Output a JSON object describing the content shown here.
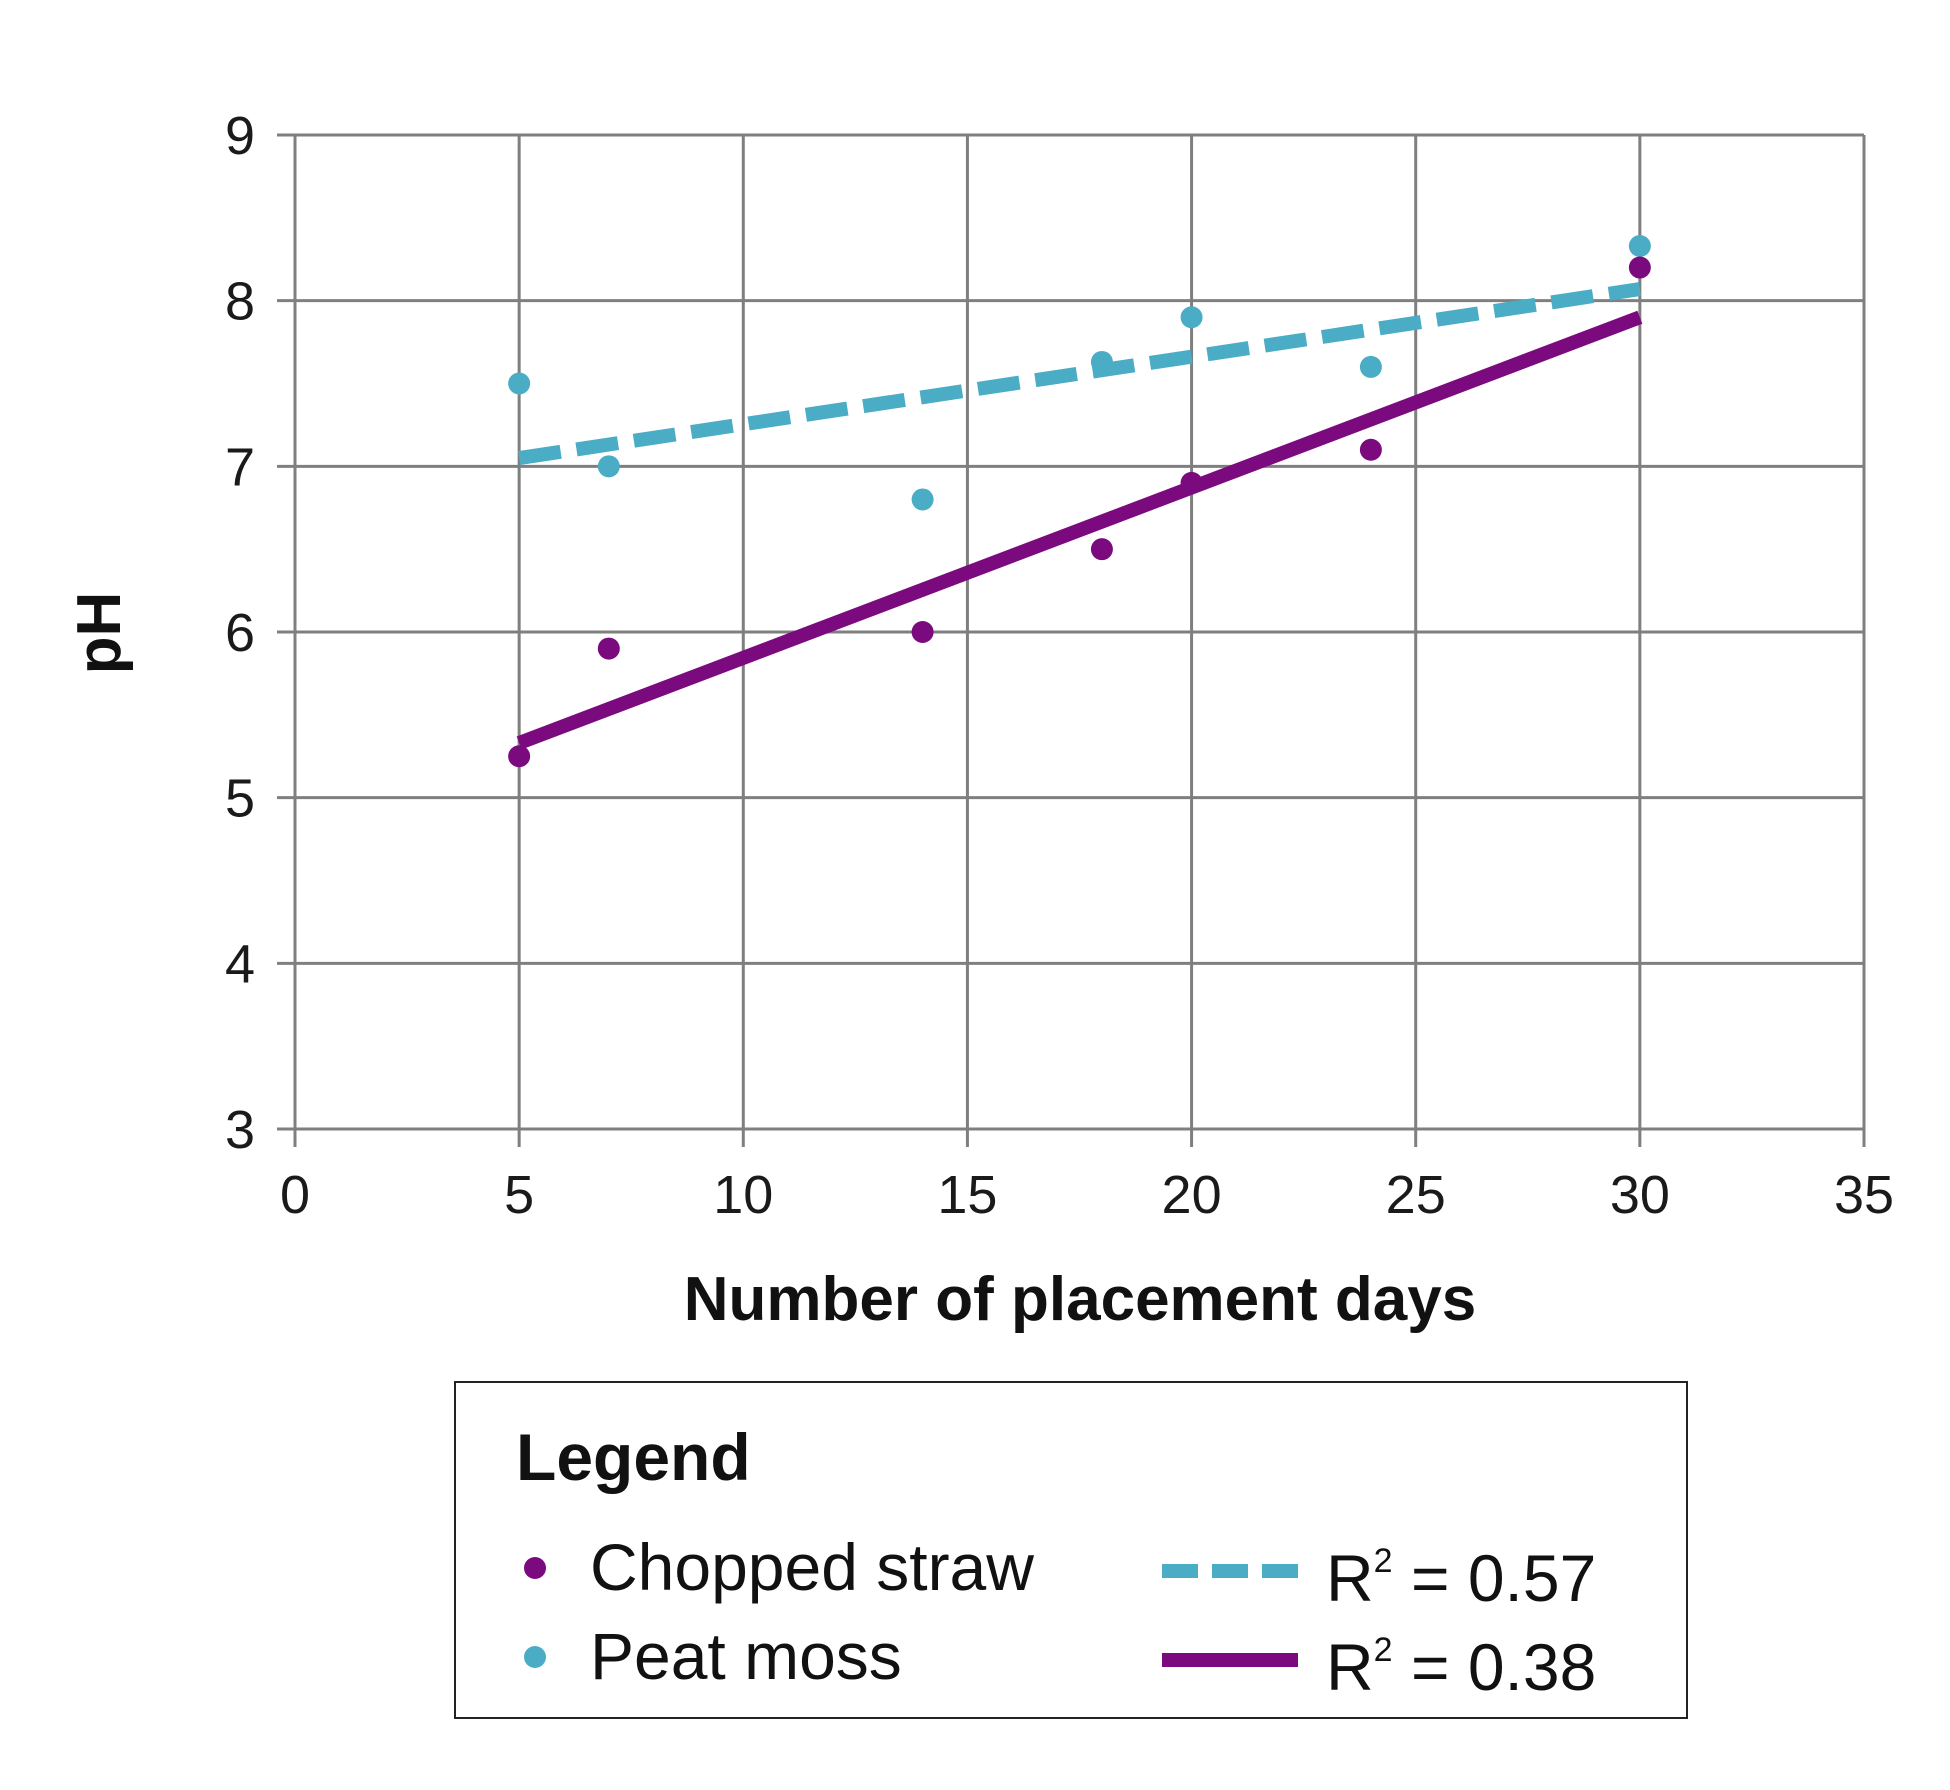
{
  "chart_data": {
    "type": "scatter",
    "xlabel": "Number of placement days",
    "ylabel": "pH",
    "xlim": [
      0,
      35
    ],
    "ylim": [
      3,
      9
    ],
    "x_ticks": [
      0,
      5,
      10,
      15,
      20,
      25,
      30,
      35
    ],
    "y_ticks": [
      3,
      4,
      5,
      6,
      7,
      8,
      9
    ],
    "grid": true,
    "legend_placement": "bottom",
    "series": [
      {
        "name": "Chopped straw",
        "color": "#7b0a7e",
        "points": [
          {
            "x": 5,
            "y": 5.25
          },
          {
            "x": 7,
            "y": 5.9
          },
          {
            "x": 14,
            "y": 6.0
          },
          {
            "x": 18,
            "y": 6.5
          },
          {
            "x": 20,
            "y": 6.9
          },
          {
            "x": 24,
            "y": 7.1
          },
          {
            "x": 30,
            "y": 8.2
          }
        ],
        "trendline": {
          "style": "solid",
          "from": {
            "x": 5,
            "y": 5.33
          },
          "to": {
            "x": 30,
            "y": 7.9
          },
          "r2_label": "R",
          "r2_value": "= 0.38"
        }
      },
      {
        "name": "Peat moss",
        "color": "#4bacc6",
        "points": [
          {
            "x": 5,
            "y": 7.5
          },
          {
            "x": 7,
            "y": 7.0
          },
          {
            "x": 14,
            "y": 6.8
          },
          {
            "x": 18,
            "y": 7.63
          },
          {
            "x": 20,
            "y": 7.9
          },
          {
            "x": 24,
            "y": 7.6
          },
          {
            "x": 30,
            "y": 8.33
          }
        ],
        "trendline": {
          "style": "dashed",
          "from": {
            "x": 5,
            "y": 7.05
          },
          "to": {
            "x": 30,
            "y": 8.07
          },
          "r2_label": "R",
          "r2_value": "= 0.57"
        }
      }
    ]
  },
  "legend": {
    "title": "Legend",
    "superscript": "2"
  }
}
